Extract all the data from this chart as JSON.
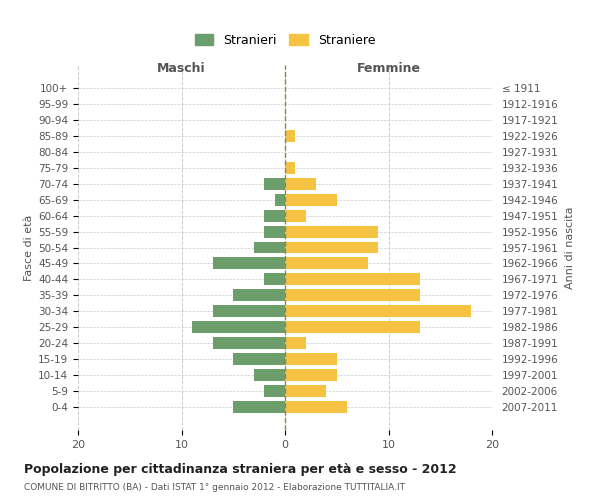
{
  "age_groups": [
    "100+",
    "95-99",
    "90-94",
    "85-89",
    "80-84",
    "75-79",
    "70-74",
    "65-69",
    "60-64",
    "55-59",
    "50-54",
    "45-49",
    "40-44",
    "35-39",
    "30-34",
    "25-29",
    "20-24",
    "15-19",
    "10-14",
    "5-9",
    "0-4"
  ],
  "birth_years": [
    "≤ 1911",
    "1912-1916",
    "1917-1921",
    "1922-1926",
    "1927-1931",
    "1932-1936",
    "1937-1941",
    "1942-1946",
    "1947-1951",
    "1952-1956",
    "1957-1961",
    "1962-1966",
    "1967-1971",
    "1972-1976",
    "1977-1981",
    "1982-1986",
    "1987-1991",
    "1992-1996",
    "1997-2001",
    "2002-2006",
    "2007-2011"
  ],
  "maschi": [
    0,
    0,
    0,
    0,
    0,
    0,
    2,
    1,
    2,
    2,
    3,
    7,
    2,
    5,
    7,
    9,
    7,
    5,
    3,
    2,
    5
  ],
  "femmine": [
    0,
    0,
    0,
    1,
    0,
    1,
    3,
    5,
    2,
    9,
    9,
    8,
    13,
    13,
    18,
    13,
    2,
    5,
    5,
    4,
    6
  ],
  "maschi_color": "#6b9e6b",
  "femmine_color": "#f5c242",
  "background_color": "#ffffff",
  "grid_color": "#cccccc",
  "title": "Popolazione per cittadinanza straniera per età e sesso - 2012",
  "subtitle": "COMUNE DI BITRITTO (BA) - Dati ISTAT 1° gennaio 2012 - Elaborazione TUTTITALIA.IT",
  "xlabel_left": "Maschi",
  "xlabel_right": "Femmine",
  "ylabel_left": "Fasce di età",
  "ylabel_right": "Anni di nascita",
  "legend_maschi": "Stranieri",
  "legend_femmine": "Straniere",
  "xlim": 20
}
